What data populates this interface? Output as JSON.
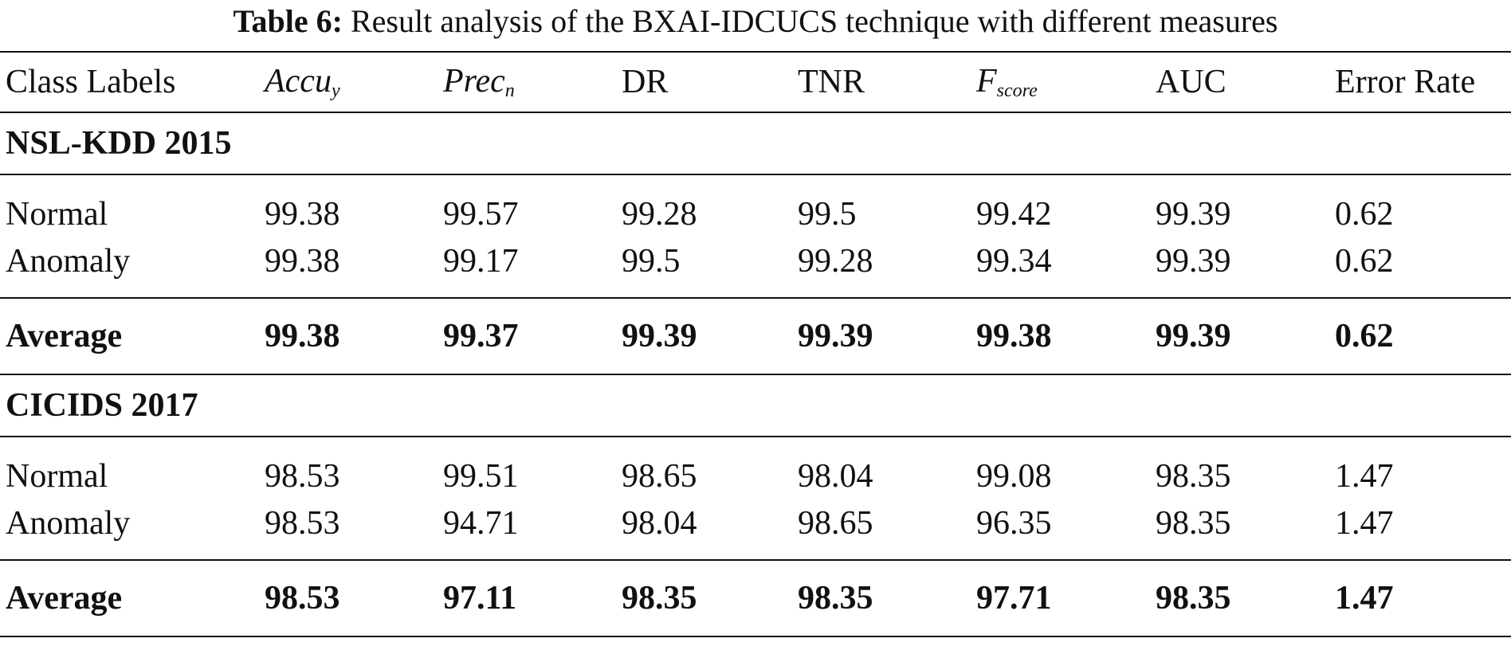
{
  "caption": {
    "label": "Table 6:",
    "text": "Result analysis of the BXAI-IDCUCS technique with different measures"
  },
  "header": {
    "class_labels": "Class Labels",
    "accuracy": {
      "base": "Accu",
      "sub": "y"
    },
    "precision": {
      "base": "Prec",
      "sub": "n"
    },
    "dr": "DR",
    "tnr": "TNR",
    "fscore": {
      "base": "F",
      "sub": "score"
    },
    "auc": "AUC",
    "error_rate": "Error Rate"
  },
  "sections": [
    {
      "title": "NSL-KDD 2015",
      "rows": [
        {
          "label": "Normal",
          "values": [
            "99.38",
            "99.57",
            "99.28",
            "99.5",
            "99.42",
            "99.39",
            "0.62"
          ]
        },
        {
          "label": "Anomaly",
          "values": [
            "99.38",
            "99.17",
            "99.5",
            "99.28",
            "99.34",
            "99.39",
            "0.62"
          ]
        }
      ],
      "average": {
        "label": "Average",
        "values": [
          "99.38",
          "99.37",
          "99.39",
          "99.39",
          "99.38",
          "99.39",
          "0.62"
        ]
      }
    },
    {
      "title": "CICIDS 2017",
      "rows": [
        {
          "label": "Normal",
          "values": [
            "98.53",
            "99.51",
            "98.65",
            "98.04",
            "99.08",
            "98.35",
            "1.47"
          ]
        },
        {
          "label": "Anomaly",
          "values": [
            "98.53",
            "94.71",
            "98.04",
            "98.65",
            "96.35",
            "98.35",
            "1.47"
          ]
        }
      ],
      "average": {
        "label": "Average",
        "values": [
          "98.53",
          "97.11",
          "98.35",
          "98.35",
          "97.71",
          "98.35",
          "1.47"
        ]
      }
    }
  ]
}
